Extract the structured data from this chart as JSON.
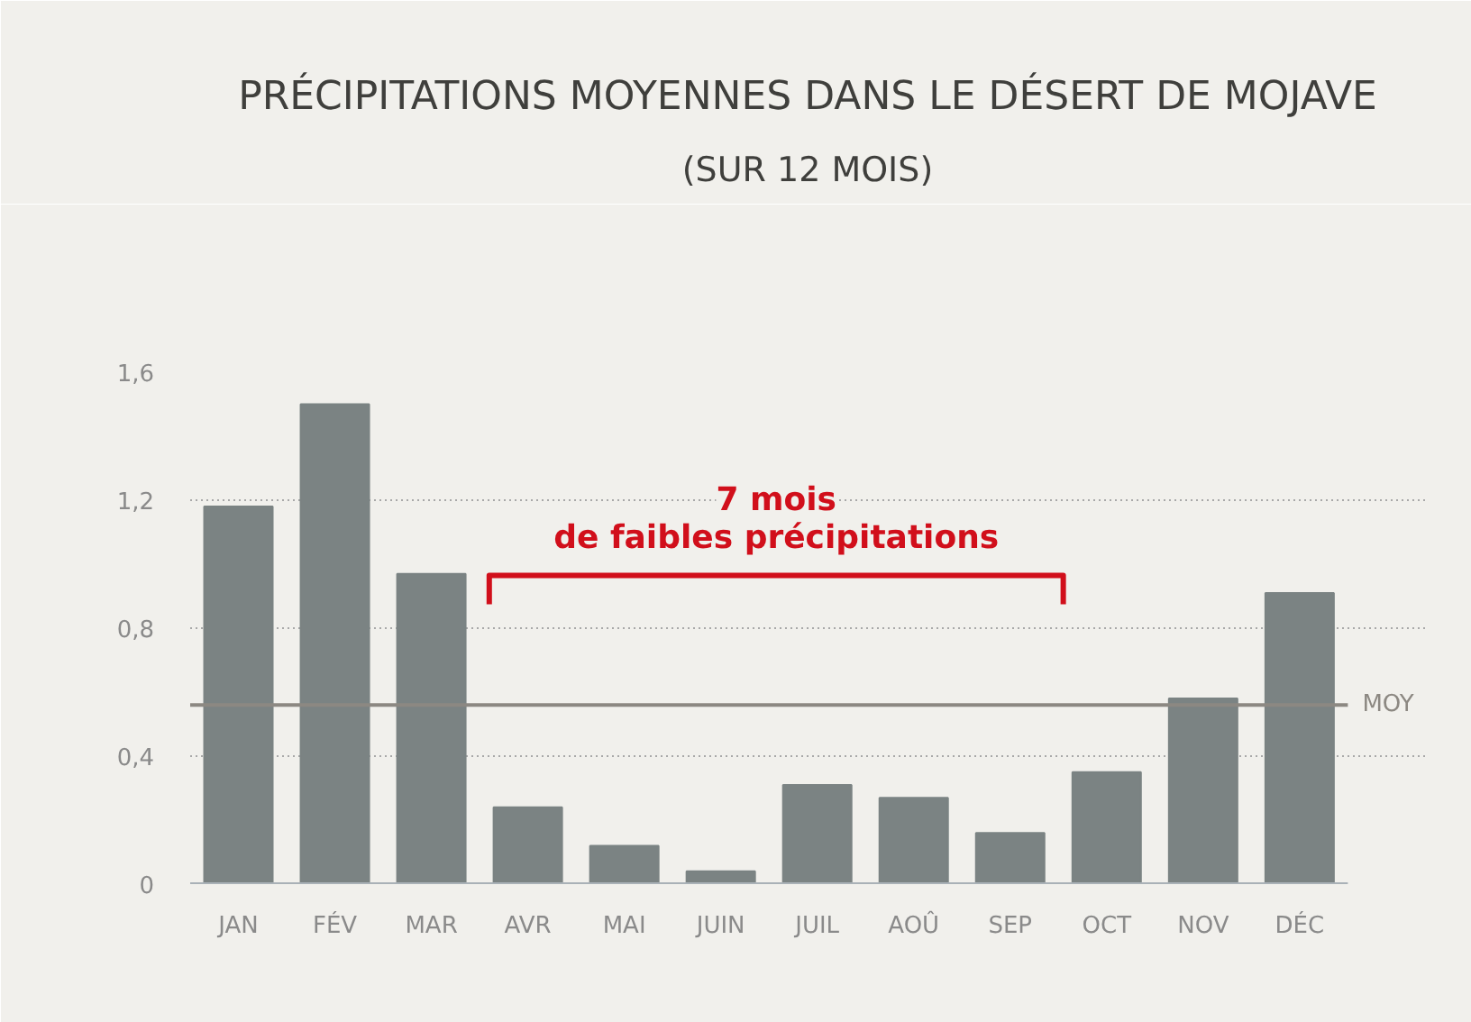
{
  "chart_data": {
    "type": "bar",
    "title": "PRÉCIPITATIONS MOYENNES DANS LE DÉSERT DE MOJAVE",
    "subtitle": "(SUR 12 MOIS)",
    "categories": [
      "JAN",
      "FÉV",
      "MAR",
      "AVR",
      "MAI",
      "JUIN",
      "JUIL",
      "AOÛ",
      "SEP",
      "OCT",
      "NOV",
      "DÉC"
    ],
    "values": [
      1.18,
      1.5,
      0.97,
      0.24,
      0.12,
      0.04,
      0.31,
      0.27,
      0.16,
      0.35,
      0.58,
      0.91
    ],
    "color": "#7b8383",
    "ylim": [
      0,
      1.6
    ],
    "yticks": [
      0,
      {
        "value": 0.4,
        "label": "0,4"
      },
      {
        "value": 0.8,
        "label": "0,8"
      },
      {
        "value": 1.2,
        "label": "1,2"
      },
      {
        "value": 1.6,
        "label": "1,6"
      }
    ],
    "grid": "y",
    "ref_lines": [
      {
        "axis": "y",
        "value": 0.56,
        "label": "MOY",
        "color": "#8c8882"
      }
    ],
    "annotations": [
      "7 mois\nde faibles précipitations"
    ]
  }
}
